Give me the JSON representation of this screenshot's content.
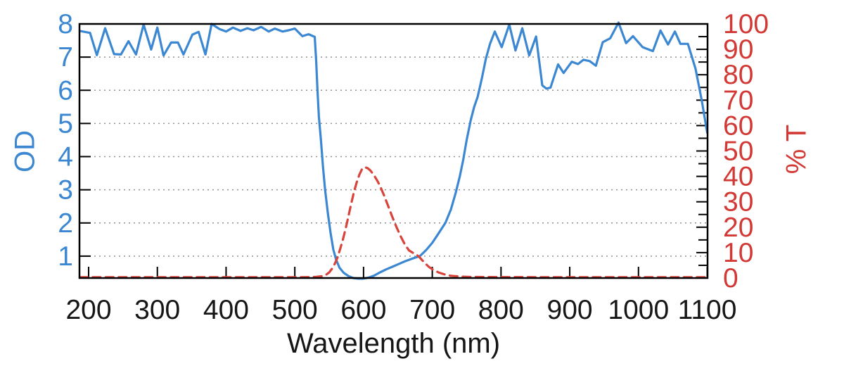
{
  "chart_data": {
    "type": "line",
    "title": "",
    "xlabel": "Wavelength (nm)",
    "ylabel_left": "OD",
    "ylabel_right": "% T",
    "legend": "none",
    "grid": {
      "style": "dotted-horizontal",
      "at_left_axis_values": [
        1,
        2,
        3,
        4,
        5,
        6,
        7
      ],
      "color": "#909090"
    },
    "x_axis": {
      "range": [
        186.7,
        1100.5
      ],
      "ticks": [
        200,
        300,
        400,
        500,
        600,
        700,
        800,
        900,
        1000,
        1100
      ],
      "tick_label_color": "#161616"
    },
    "y_left_axis": {
      "label": "OD",
      "range": [
        0.34,
        8
      ],
      "ticks": [
        1,
        2,
        3,
        4,
        5,
        6,
        7,
        8
      ],
      "color": "#3c87d2"
    },
    "y_right_axis": {
      "label": "% T",
      "range": [
        0,
        100
      ],
      "major_ticks": [
        0,
        10,
        20,
        30,
        40,
        50,
        60,
        70,
        80,
        90,
        100
      ],
      "minor_tick_step": 5,
      "color": "#d23834"
    },
    "axis_color": "#000000",
    "series": [
      {
        "name": "OD",
        "axis": "left",
        "line_style": "solid",
        "color": "#3c87d2",
        "points": [
          [
            187,
            7.79
          ],
          [
            202,
            7.73
          ],
          [
            212,
            7.06
          ],
          [
            224,
            7.87
          ],
          [
            237,
            7.09
          ],
          [
            247,
            7.08
          ],
          [
            258,
            7.48
          ],
          [
            269,
            7.08
          ],
          [
            280,
            7.98
          ],
          [
            291,
            7.23
          ],
          [
            300,
            7.89
          ],
          [
            309,
            7.05
          ],
          [
            320,
            7.44
          ],
          [
            330,
            7.44
          ],
          [
            338,
            7.08
          ],
          [
            351,
            7.68
          ],
          [
            360,
            7.76
          ],
          [
            370,
            7.08
          ],
          [
            379,
            8.0
          ],
          [
            390,
            7.85
          ],
          [
            400,
            7.77
          ],
          [
            410,
            7.89
          ],
          [
            421,
            7.79
          ],
          [
            431,
            7.87
          ],
          [
            440,
            7.81
          ],
          [
            451,
            7.91
          ],
          [
            462,
            7.77
          ],
          [
            471,
            7.86
          ],
          [
            482,
            7.77
          ],
          [
            491,
            7.81
          ],
          [
            500,
            7.86
          ],
          [
            511,
            7.63
          ],
          [
            520,
            7.69
          ],
          [
            529,
            7.61
          ],
          [
            531,
            6.9
          ],
          [
            533,
            6.0
          ],
          [
            535,
            5.2
          ],
          [
            538,
            4.5
          ],
          [
            541,
            3.7
          ],
          [
            544,
            3.0
          ],
          [
            548,
            2.3
          ],
          [
            552,
            1.7
          ],
          [
            556,
            1.2
          ],
          [
            560,
            0.9
          ],
          [
            565,
            0.65
          ],
          [
            571,
            0.5
          ],
          [
            578,
            0.4
          ],
          [
            585,
            0.34
          ],
          [
            592,
            0.32
          ],
          [
            599,
            0.32
          ],
          [
            607,
            0.35
          ],
          [
            615,
            0.41
          ],
          [
            624,
            0.51
          ],
          [
            633,
            0.6
          ],
          [
            642,
            0.68
          ],
          [
            651,
            0.76
          ],
          [
            660,
            0.84
          ],
          [
            670,
            0.92
          ],
          [
            682,
            1.0
          ],
          [
            691,
            1.18
          ],
          [
            700,
            1.4
          ],
          [
            707,
            1.62
          ],
          [
            714,
            1.84
          ],
          [
            719,
            2.0
          ],
          [
            727,
            2.4
          ],
          [
            734,
            2.9
          ],
          [
            740,
            3.4
          ],
          [
            745,
            3.9
          ],
          [
            750,
            4.5
          ],
          [
            756,
            5.1
          ],
          [
            761,
            5.5
          ],
          [
            766,
            5.8
          ],
          [
            772,
            6.35
          ],
          [
            778,
            6.95
          ],
          [
            784,
            7.4
          ],
          [
            791,
            7.77
          ],
          [
            801,
            7.3
          ],
          [
            812,
            7.98
          ],
          [
            821,
            7.2
          ],
          [
            831,
            7.87
          ],
          [
            841,
            7.05
          ],
          [
            851,
            7.62
          ],
          [
            860,
            6.15
          ],
          [
            866,
            6.05
          ],
          [
            872,
            6.08
          ],
          [
            883,
            6.78
          ],
          [
            891,
            6.52
          ],
          [
            903,
            6.86
          ],
          [
            912,
            6.79
          ],
          [
            920,
            6.92
          ],
          [
            929,
            6.88
          ],
          [
            938,
            6.74
          ],
          [
            948,
            7.45
          ],
          [
            959,
            7.57
          ],
          [
            971,
            8.04
          ],
          [
            982,
            7.42
          ],
          [
            992,
            7.63
          ],
          [
            1006,
            7.3
          ],
          [
            1021,
            7.18
          ],
          [
            1032,
            7.8
          ],
          [
            1043,
            7.38
          ],
          [
            1053,
            7.77
          ],
          [
            1061,
            7.4
          ],
          [
            1072,
            7.4
          ],
          [
            1083,
            6.65
          ],
          [
            1092,
            5.7
          ],
          [
            1100,
            4.72
          ]
        ]
      },
      {
        "name": "% T",
        "axis": "right",
        "line_style": "dashed",
        "color": "#d8433b",
        "points": [
          [
            187,
            0.3
          ],
          [
            250,
            0.3
          ],
          [
            350,
            0.3
          ],
          [
            450,
            0.3
          ],
          [
            505,
            0.3
          ],
          [
            520,
            0.35
          ],
          [
            531,
            0.45
          ],
          [
            539,
            0.7
          ],
          [
            545,
            1.2
          ],
          [
            550,
            2.2
          ],
          [
            554,
            3.6
          ],
          [
            558,
            5.5
          ],
          [
            562,
            8.0
          ],
          [
            566,
            11.5
          ],
          [
            570,
            15.2
          ],
          [
            574,
            19.5
          ],
          [
            578,
            24.3
          ],
          [
            582,
            29.2
          ],
          [
            586,
            33.8
          ],
          [
            590,
            37.6
          ],
          [
            594,
            40.7
          ],
          [
            598,
            43.0
          ],
          [
            602,
            43.6
          ],
          [
            606,
            43.2
          ],
          [
            610,
            42.3
          ],
          [
            615,
            40.5
          ],
          [
            620,
            38.3
          ],
          [
            624,
            36.3
          ],
          [
            630,
            32.4
          ],
          [
            636,
            28.2
          ],
          [
            642,
            24.0
          ],
          [
            648,
            20.0
          ],
          [
            654,
            16.4
          ],
          [
            660,
            13.3
          ],
          [
            666,
            10.9
          ],
          [
            672,
            9.9
          ],
          [
            680,
            8.6
          ],
          [
            688,
            6.2
          ],
          [
            695,
            4.4
          ],
          [
            702,
            3.1
          ],
          [
            710,
            2.1
          ],
          [
            718,
            1.4
          ],
          [
            727,
            0.9
          ],
          [
            741,
            0.55
          ],
          [
            755,
            0.42
          ],
          [
            800,
            0.35
          ],
          [
            900,
            0.3
          ],
          [
            1000,
            0.3
          ],
          [
            1100,
            0.3
          ]
        ]
      }
    ]
  }
}
